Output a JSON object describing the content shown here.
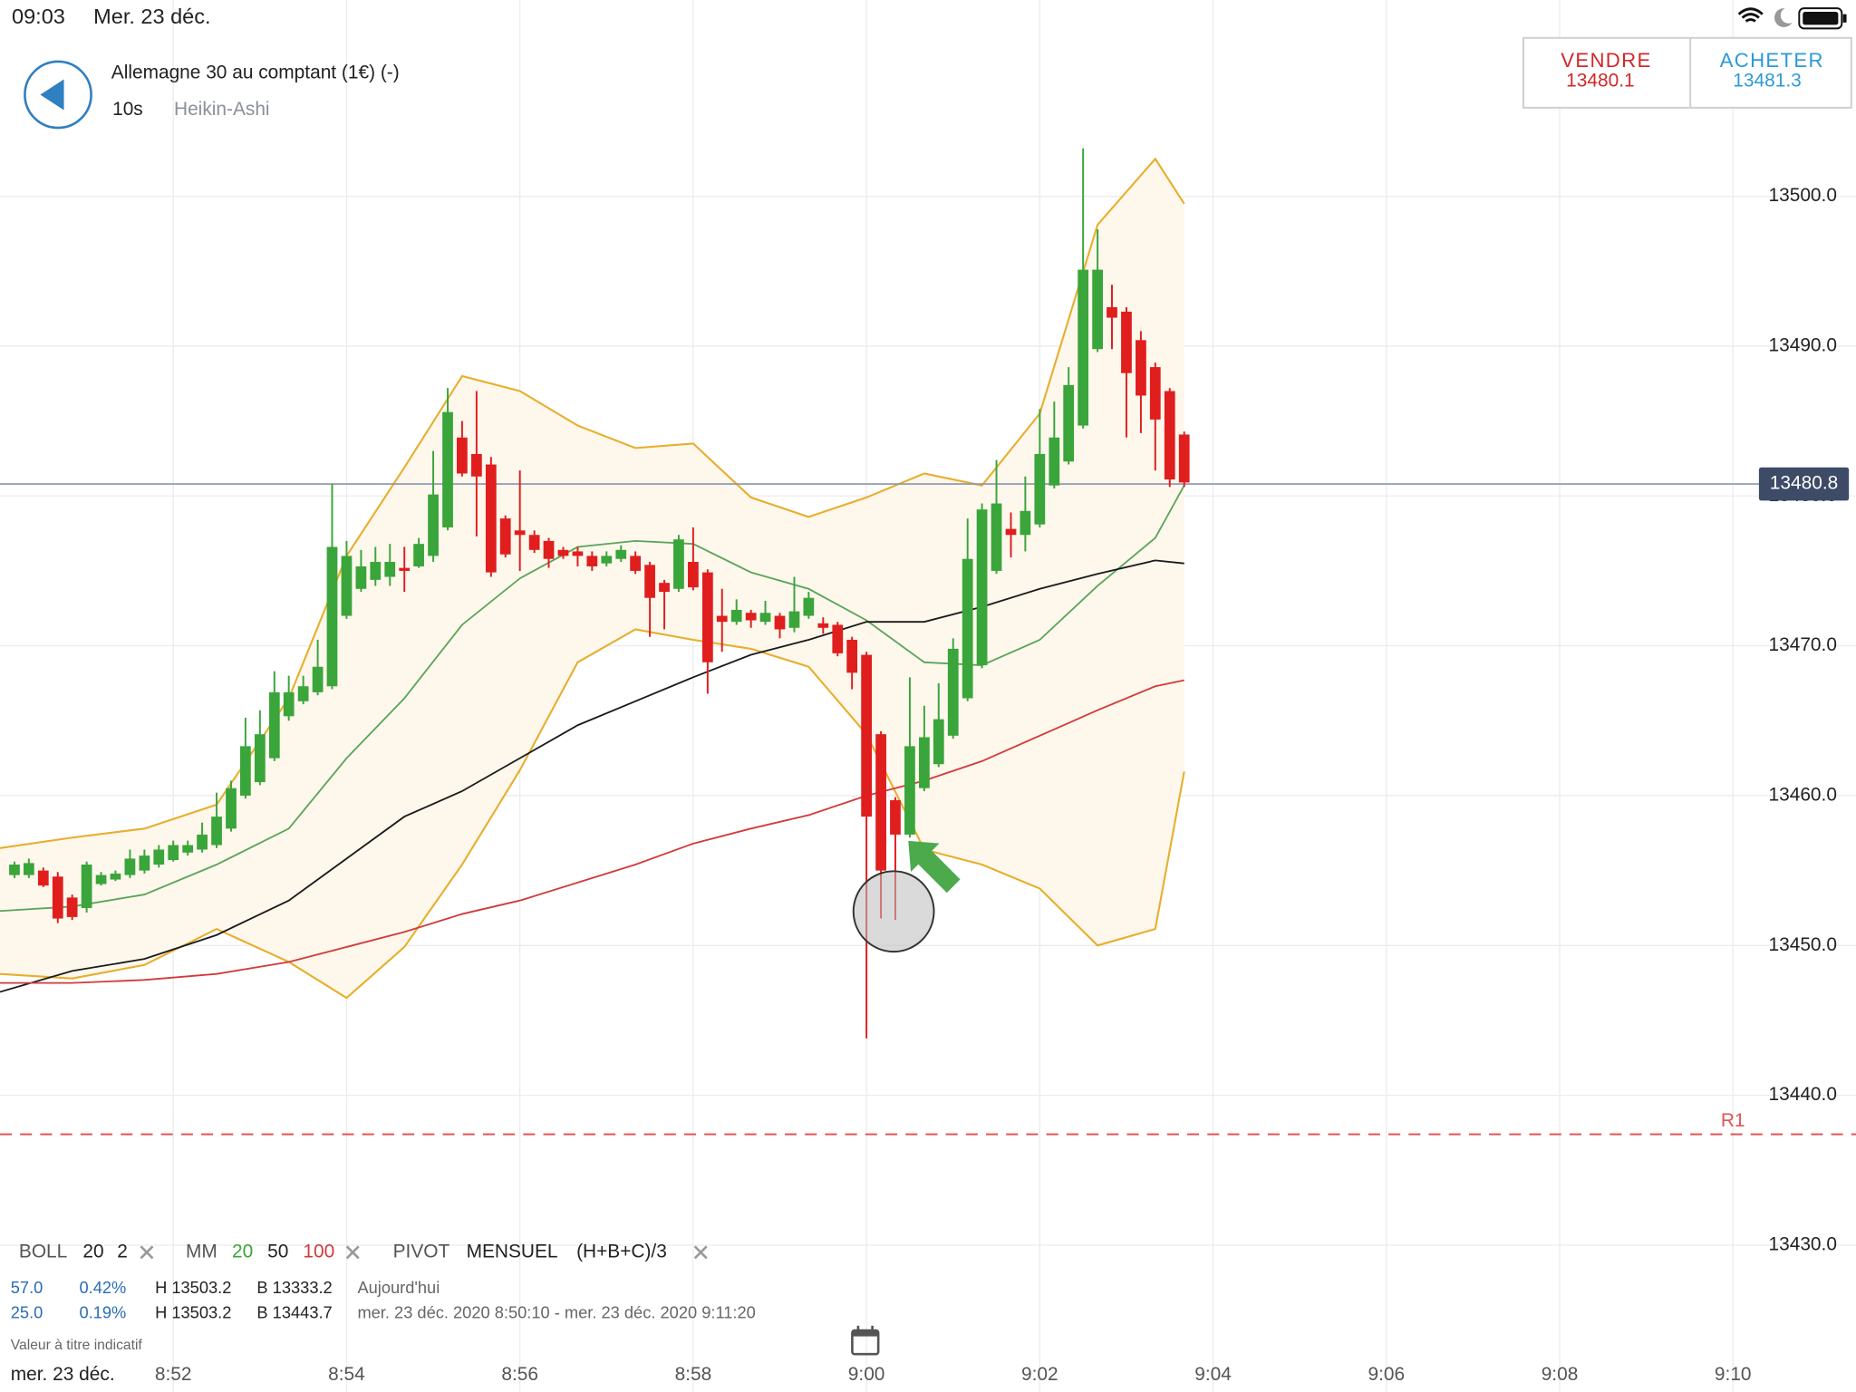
{
  "status_bar": {
    "time": "09:03",
    "date": "Mer. 23 déc."
  },
  "header": {
    "instrument": "Allemagne 30 au comptant (1€) (-)",
    "interval": "10s",
    "chart_style": "Heikin-Ashi"
  },
  "trade": {
    "sell_label": "VENDRE",
    "sell_price": "13480.1",
    "buy_label": "ACHETER",
    "buy_price": "13481.3"
  },
  "indicators": {
    "boll": [
      "BOLL",
      "20",
      "2"
    ],
    "mm": [
      "MM",
      "20",
      "50",
      "100"
    ],
    "pivot": [
      "PIVOT",
      "MENSUEL",
      "(H+B+C)/3"
    ]
  },
  "stats": {
    "rows": [
      [
        "57.0",
        "0.42%",
        "H 13503.2",
        "B 13333.2",
        "Aujourd'hui"
      ],
      [
        "25.0",
        "0.19%",
        "H 13503.2",
        "B 13443.7",
        "mer. 23 déc. 2020 8:50:10 - mer. 23 déc. 2020 9:11:20"
      ]
    ]
  },
  "footer": {
    "disclaimer": "Valeur à titre indicatif",
    "date": "mer. 23 déc."
  },
  "chart_data": {
    "type": "candlestick",
    "up_color": "#3aa53a",
    "down_color": "#e01e1e",
    "grid": true,
    "xlim": [
      530,
      551.42
    ],
    "ylim": [
      13420.2,
      13513.1
    ],
    "xticks": [
      {
        "value": 532,
        "label": "8:52"
      },
      {
        "value": 534,
        "label": "8:54"
      },
      {
        "value": 536,
        "label": "8:56"
      },
      {
        "value": 538,
        "label": "8:58"
      },
      {
        "value": 540,
        "label": "9:00"
      },
      {
        "value": 542,
        "label": "9:02"
      },
      {
        "value": 544,
        "label": "9:04"
      },
      {
        "value": 546,
        "label": "9:06"
      },
      {
        "value": 548,
        "label": "9:08"
      },
      {
        "value": 550,
        "label": "9:10"
      }
    ],
    "yticks": [
      {
        "value": 13430,
        "label": "13430.0"
      },
      {
        "value": 13440,
        "label": "13440.0"
      },
      {
        "value": 13450,
        "label": "13450.0"
      },
      {
        "value": 13460,
        "label": "13460.0"
      },
      {
        "value": 13470,
        "label": "13470.0"
      },
      {
        "value": 13480,
        "label": "13480.0"
      },
      {
        "value": 13490,
        "label": "13490.0"
      },
      {
        "value": 13500,
        "label": "13500.0"
      }
    ],
    "x": [
      530.167,
      530.333,
      530.5,
      530.667,
      530.833,
      531,
      531.167,
      531.333,
      531.5,
      531.667,
      531.833,
      532,
      532.167,
      532.333,
      532.5,
      532.667,
      532.833,
      533,
      533.167,
      533.333,
      533.5,
      533.667,
      533.833,
      534,
      534.167,
      534.333,
      534.5,
      534.667,
      534.833,
      535,
      535.167,
      535.333,
      535.5,
      535.667,
      535.833,
      536,
      536.167,
      536.333,
      536.5,
      536.667,
      536.833,
      537,
      537.167,
      537.333,
      537.5,
      537.667,
      537.833,
      538,
      538.167,
      538.333,
      538.5,
      538.667,
      538.833,
      539,
      539.167,
      539.333,
      539.5,
      539.667,
      539.833,
      540,
      540.167,
      540.333,
      540.5,
      540.667,
      540.833,
      541,
      541.167,
      541.333,
      541.5,
      541.667,
      541.833,
      542,
      542.167,
      542.333,
      542.5,
      542.667,
      542.833,
      543,
      543.167,
      543.333,
      543.5,
      543.667
    ],
    "open": [
      13454.7,
      13454.7,
      13455.0,
      13454.6,
      13453.2,
      13452.5,
      13454.1,
      13454.4,
      13454.7,
      13455.0,
      13455.4,
      13455.7,
      13456.2,
      13456.4,
      13456.7,
      13457.8,
      13460.0,
      13460.9,
      13462.5,
      13465.3,
      13466.3,
      13466.9,
      13467.3,
      13472.0,
      13473.8,
      13474.4,
      13474.6,
      13475.2,
      13475.3,
      13476.0,
      13477.9,
      13483.9,
      13482.8,
      13482.1,
      13478.5,
      13477.7,
      13477.4,
      13477.0,
      13476.4,
      13476.3,
      13476.0,
      13475.5,
      13475.8,
      13476.0,
      13475.4,
      13474.2,
      13473.8,
      13475.6,
      13474.9,
      13472.0,
      13471.6,
      13472.2,
      13471.6,
      13472.0,
      13471.2,
      13472.0,
      13471.5,
      13471.4,
      13470.4,
      13469.4,
      13464.1,
      13459.7,
      13457.4,
      13460.5,
      13462.1,
      13464.0,
      13466.5,
      13468.7,
      13475.0,
      13477.8,
      13477.4,
      13478.1,
      13480.7,
      13482.3,
      13484.7,
      13489.8,
      13492.6,
      13492.3,
      13490.4,
      13488.6,
      13487.0,
      13484.1
    ],
    "high": [
      13455.6,
      13455.8,
      13455.2,
      13454.9,
      13453.4,
      13455.6,
      13454.9,
      13455.0,
      13456.4,
      13456.4,
      13456.7,
      13457.0,
      13457.0,
      13458.2,
      13460.2,
      13461.0,
      13465.2,
      13465.7,
      13468.3,
      13468.0,
      13468.0,
      13470.4,
      13480.8,
      13477.0,
      13476.4,
      13476.6,
      13476.8,
      13476.6,
      13477.2,
      13483.0,
      13487.2,
      13485.0,
      13487.0,
      13482.6,
      13478.7,
      13481.7,
      13477.7,
      13477.2,
      13476.6,
      13476.6,
      13476.3,
      13476.3,
      13476.7,
      13476.3,
      13475.6,
      13474.4,
      13477.4,
      13477.9,
      13475.1,
      13473.8,
      13473.1,
      13472.4,
      13473.0,
      13472.2,
      13474.6,
      13473.6,
      13471.9,
      13471.6,
      13470.6,
      13469.6,
      13464.3,
      13459.9,
      13467.9,
      13466.0,
      13467.5,
      13470.5,
      13478.5,
      13479.5,
      13482.4,
      13478.9,
      13481.3,
      13485.8,
      13486.3,
      13488.6,
      13503.2,
      13497.8,
      13494.1,
      13492.6,
      13491.0,
      13488.9,
      13487.2,
      13484.3
    ],
    "low": [
      13454.5,
      13454.5,
      13453.9,
      13451.5,
      13451.7,
      13452.2,
      13454.0,
      13454.3,
      13454.5,
      13454.8,
      13455.2,
      13455.6,
      13456.0,
      13456.2,
      13456.5,
      13457.6,
      13459.8,
      13460.7,
      13462.3,
      13465.0,
      13466.1,
      13466.7,
      13467.1,
      13471.8,
      13473.6,
      13474.0,
      13474.0,
      13473.6,
      13475.2,
      13475.6,
      13477.7,
      13481.3,
      13477.3,
      13474.6,
      13475.9,
      13475.0,
      13476.2,
      13475.2,
      13475.8,
      13475.3,
      13475.0,
      13475.3,
      13475.6,
      13474.8,
      13470.6,
      13471.1,
      13473.6,
      13473.7,
      13466.8,
      13469.6,
      13471.4,
      13471.2,
      13471.4,
      13470.5,
      13470.9,
      13471.8,
      13470.8,
      13469.3,
      13467.1,
      13443.8,
      13451.8,
      13451.7,
      13457.2,
      13460.3,
      13461.9,
      13463.8,
      13466.3,
      13468.5,
      13474.8,
      13475.9,
      13476.3,
      13477.9,
      13480.5,
      13482.1,
      13484.5,
      13489.6,
      13489.8,
      13483.9,
      13484.2,
      13481.7,
      13480.6,
      13480.6
    ],
    "close": [
      13455.4,
      13455.5,
      13454.0,
      13451.8,
      13451.9,
      13455.4,
      13454.7,
      13454.8,
      13455.8,
      13456.0,
      13456.4,
      13456.7,
      13456.7,
      13457.4,
      13458.6,
      13460.5,
      13463.3,
      13464.1,
      13466.9,
      13466.9,
      13467.3,
      13468.6,
      13476.6,
      13476.0,
      13475.3,
      13475.6,
      13475.6,
      13475.0,
      13476.8,
      13480.1,
      13485.6,
      13481.5,
      13481.3,
      13474.9,
      13476.1,
      13477.4,
      13476.4,
      13475.8,
      13476.0,
      13476.0,
      13475.3,
      13476.0,
      13476.4,
      13475.0,
      13473.2,
      13473.6,
      13477.1,
      13473.9,
      13468.9,
      13471.6,
      13472.4,
      13471.7,
      13472.2,
      13471.1,
      13472.3,
      13473.2,
      13471.2,
      13469.5,
      13468.2,
      13458.6,
      13455.0,
      13457.4,
      13463.3,
      13463.9,
      13465.1,
      13469.8,
      13475.8,
      13479.1,
      13479.5,
      13477.4,
      13479.0,
      13482.8,
      13483.9,
      13487.4,
      13495.1,
      13495.1,
      13491.9,
      13488.2,
      13486.7,
      13485.1,
      13481.1,
      13480.9
    ],
    "overlays": {
      "x": [
        530,
        530.833,
        531.667,
        532.5,
        533.333,
        534,
        534.667,
        535.333,
        536,
        536.667,
        537.333,
        538,
        538.667,
        539.333,
        540,
        540.667,
        541.333,
        542,
        542.667,
        543.333,
        543.667
      ],
      "band": {
        "color": "#e8ae2c",
        "fill": "#fdf7ec",
        "upper": [
          13456.5,
          13457.2,
          13457.8,
          13459.4,
          13466.5,
          13476.0,
          13481.9,
          13488.0,
          13487.0,
          13484.7,
          13483.2,
          13483.5,
          13479.9,
          13478.6,
          13479.9,
          13481.5,
          13480.7,
          13485.5,
          13498.1,
          13502.5,
          13499.5
        ],
        "lower": [
          13448.1,
          13447.8,
          13448.7,
          13451.1,
          13448.9,
          13446.5,
          13449.9,
          13455.4,
          13461.7,
          13468.9,
          13471.1,
          13470.4,
          13469.8,
          13468.6,
          13464.1,
          13456.4,
          13455.4,
          13453.8,
          13450.0,
          13451.1,
          13461.6
        ]
      },
      "lines": [
        {
          "color": "#5aa55a",
          "values": [
            13452.3,
            13452.6,
            13453.4,
            13455.4,
            13457.8,
            13462.5,
            13466.5,
            13471.4,
            13474.5,
            13476.6,
            13477.0,
            13476.8,
            13474.9,
            13473.8,
            13471.7,
            13468.9,
            13468.7,
            13470.4,
            13474.0,
            13477.2,
            13480.7
          ]
        },
        {
          "color": "#1a1a1a",
          "values": [
            13446.9,
            13448.3,
            13449.1,
            13450.7,
            13453.0,
            13455.8,
            13458.6,
            13460.3,
            13462.5,
            13464.7,
            13466.3,
            13467.9,
            13469.4,
            13470.4,
            13471.6,
            13471.6,
            13472.6,
            13473.8,
            13474.8,
            13475.7,
            13475.5
          ]
        },
        {
          "color": "#d23a3a",
          "values": [
            13447.5,
            13447.5,
            13447.7,
            13448.1,
            13448.9,
            13449.9,
            13450.9,
            13452.1,
            13453.0,
            13454.2,
            13455.4,
            13456.8,
            13457.8,
            13458.7,
            13460.0,
            13461.0,
            13462.3,
            13464.0,
            13465.7,
            13467.3,
            13467.7
          ]
        }
      ]
    },
    "last_price": 13480.8,
    "last_price_color": "#3d4b66",
    "pivot": {
      "label": "R1",
      "value": 13437.4,
      "color": "#e05555"
    }
  }
}
